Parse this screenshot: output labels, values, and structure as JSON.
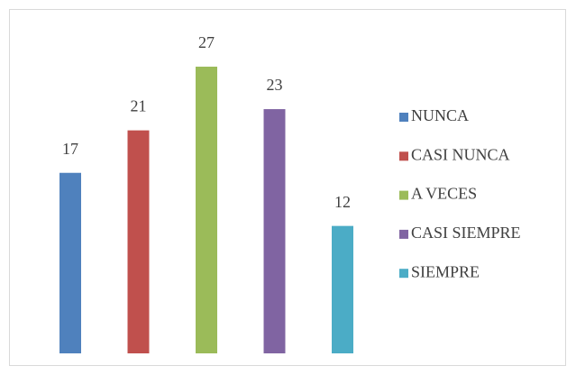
{
  "chart_data": {
    "type": "bar",
    "series": [
      {
        "name": "NUNCA",
        "color": "#4f81bd",
        "values": [
          17
        ]
      },
      {
        "name": "CASI NUNCA",
        "color": "#c0504d",
        "values": [
          21
        ]
      },
      {
        "name": "A VECES",
        "color": "#9bbb59",
        "values": [
          27
        ]
      },
      {
        "name": "CASI SIEMPRE",
        "color": "#8064a2",
        "values": [
          23
        ]
      },
      {
        "name": "SIEMPRE",
        "color": "#4bacc6",
        "values": [
          12
        ]
      }
    ],
    "legend": "right"
  }
}
